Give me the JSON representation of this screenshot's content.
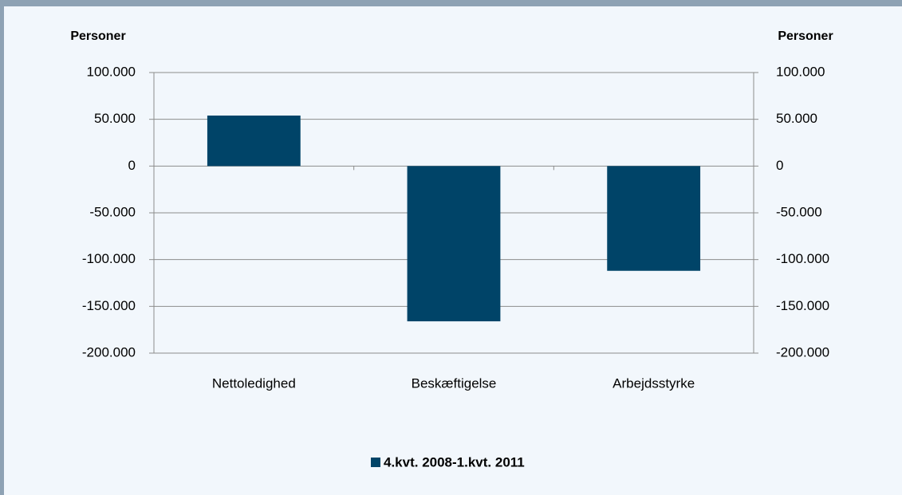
{
  "chart_data": {
    "type": "bar",
    "ylabel": "Personer",
    "y2label": "Personer",
    "categories": [
      "Nettoledighed",
      "Beskæftigelse",
      "Arbejdsstyrke"
    ],
    "series": [
      {
        "name": "4.kvt. 2008-1.kvt. 2011",
        "color": "#004468",
        "values": [
          54000,
          -166000,
          -112000
        ]
      }
    ],
    "ylim": [
      -200000,
      100000
    ],
    "yticks": [
      {
        "value": -200000,
        "label": "-200.000"
      },
      {
        "value": -150000,
        "label": "-150.000"
      },
      {
        "value": -100000,
        "label": "-100.000"
      },
      {
        "value": -50000,
        "label": "-50.000"
      },
      0,
      {
        "value": 50000,
        "label": "50.000"
      },
      {
        "value": 100000,
        "label": "100.000"
      }
    ],
    "y2lim": [
      -200000,
      100000
    ],
    "y2ticks": [
      {
        "value": -200000,
        "label": "-200.000"
      },
      {
        "value": -150000,
        "label": "-150.000"
      },
      {
        "value": -100000,
        "label": "-100.000"
      },
      {
        "value": -50000,
        "label": "-50.000"
      },
      0,
      {
        "value": 50000,
        "label": "50.000"
      },
      {
        "value": 100000,
        "label": "100.000"
      }
    ],
    "grid": true,
    "legend": "bottom"
  }
}
